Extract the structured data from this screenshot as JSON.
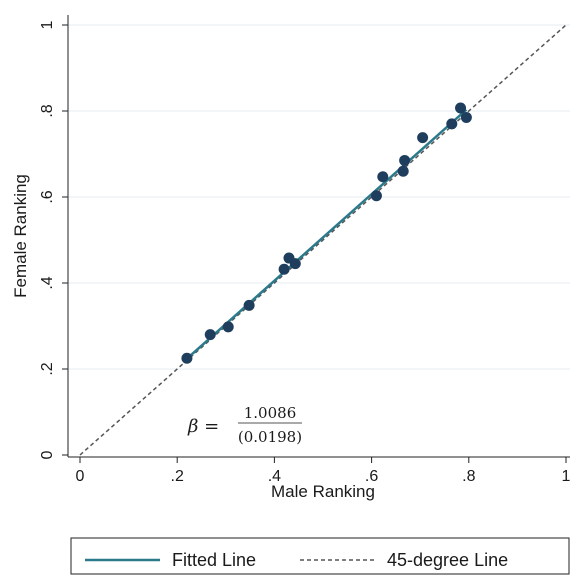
{
  "chart_data": {
    "type": "scatter",
    "title": "",
    "xlabel": "Male Ranking",
    "ylabel": "Female Ranking",
    "xlim": [
      0,
      1
    ],
    "ylim": [
      0,
      1
    ],
    "xticks": [
      {
        "value": 0,
        "label": "0"
      },
      {
        "value": 0.2,
        "label": ".2"
      },
      {
        "value": 0.4,
        "label": ".4"
      },
      {
        "value": 0.6,
        "label": ".6"
      },
      {
        "value": 0.8,
        "label": ".8"
      },
      {
        "value": 1,
        "label": "1"
      }
    ],
    "yticks": [
      {
        "value": 0,
        "label": "0"
      },
      {
        "value": 0.2,
        "label": ".2"
      },
      {
        "value": 0.4,
        "label": ".4"
      },
      {
        "value": 0.6,
        "label": ".6"
      },
      {
        "value": 0.8,
        "label": ".8"
      },
      {
        "value": 1,
        "label": "1"
      }
    ],
    "grid": "horizontal",
    "legend_position": "bottom",
    "colors": {
      "points": "#1f3e5e",
      "fit": "#2b7a8c",
      "reference": "#555555",
      "grid": "#e6ecf1"
    },
    "points": [
      {
        "x": 0.22,
        "y": 0.225
      },
      {
        "x": 0.268,
        "y": 0.28
      },
      {
        "x": 0.305,
        "y": 0.298
      },
      {
        "x": 0.348,
        "y": 0.348
      },
      {
        "x": 0.42,
        "y": 0.432
      },
      {
        "x": 0.43,
        "y": 0.458
      },
      {
        "x": 0.443,
        "y": 0.445
      },
      {
        "x": 0.61,
        "y": 0.603
      },
      {
        "x": 0.623,
        "y": 0.647
      },
      {
        "x": 0.665,
        "y": 0.66
      },
      {
        "x": 0.668,
        "y": 0.685
      },
      {
        "x": 0.705,
        "y": 0.738
      },
      {
        "x": 0.765,
        "y": 0.77
      },
      {
        "x": 0.783,
        "y": 0.807
      },
      {
        "x": 0.795,
        "y": 0.785
      }
    ],
    "fitted_line": {
      "name": "Fitted Line",
      "x": [
        0.22,
        0.795
      ],
      "y": [
        0.224,
        0.803
      ]
    },
    "reference_line": {
      "name": "45-degree Line",
      "x": [
        0,
        1
      ],
      "y": [
        0,
        1
      ]
    },
    "annotation": {
      "symbol": "β =",
      "coefficient": "1.0086",
      "std_error": "(0.0198)"
    }
  }
}
